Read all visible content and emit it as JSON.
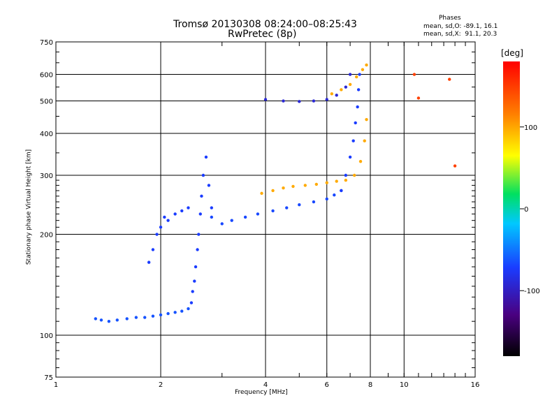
{
  "chart_data": {
    "type": "scatter",
    "title": "Tromsø 20130308 08:24:00–08:25:43",
    "subtitle": "RwPretec (8p)",
    "xlabel": "Frequency [MHz]",
    "ylabel": "Stationary phase Virtual Height [km]",
    "x_scale": "log",
    "y_scale": "log",
    "xlim": [
      1,
      16
    ],
    "ylim": [
      75,
      750
    ],
    "x_ticks": [
      1,
      2,
      4,
      6,
      8,
      10,
      16
    ],
    "y_ticks": [
      75,
      100,
      200,
      300,
      400,
      500,
      600,
      750
    ],
    "grid": true,
    "phase_box": {
      "title": "Phases",
      "line1": "mean, sd,O: -89.1, 16.1",
      "line2": "mean, sd,X:  91.1, 20.3"
    },
    "colorbar": {
      "label": "[deg]",
      "range": [
        -180,
        180
      ],
      "ticks": [
        100,
        0,
        -100
      ]
    },
    "traces": [
      {
        "name": "",
        "phase": -90,
        "x": [
          1.3,
          1.35,
          1.42,
          1.5,
          1.6,
          1.7,
          1.8,
          1.9,
          2.0,
          2.1,
          2.2,
          2.3,
          2.4
        ],
        "y": [
          112,
          111,
          110,
          111,
          112,
          113,
          113,
          114,
          115,
          116,
          117,
          118,
          120
        ]
      },
      {
        "name": "",
        "phase": -100,
        "x": [
          2.45,
          2.47,
          2.5,
          2.52,
          2.55,
          2.57,
          2.6,
          2.62,
          2.65,
          2.7,
          2.75,
          2.8
        ],
        "y": [
          125,
          135,
          145,
          160,
          180,
          200,
          230,
          260,
          300,
          340,
          280,
          240
        ]
      },
      {
        "name": "",
        "phase": -100,
        "x": [
          1.85,
          1.9,
          1.95,
          2.0,
          2.05,
          2.1,
          2.2,
          2.3,
          2.4
        ],
        "y": [
          165,
          180,
          200,
          210,
          225,
          220,
          230,
          235,
          240
        ]
      },
      {
        "name": "",
        "phase": -95,
        "x": [
          2.8,
          3.0,
          3.2,
          3.5,
          3.8,
          4.2,
          4.6,
          5.0,
          5.5,
          6.0,
          6.3,
          6.6
        ],
        "y": [
          225,
          215,
          220,
          225,
          230,
          235,
          240,
          245,
          250,
          255,
          262,
          270
        ]
      },
      {
        "name": "",
        "phase": 100,
        "x": [
          3.9,
          4.2,
          4.5,
          4.8,
          5.2,
          5.6,
          6.0,
          6.4,
          6.8,
          7.2,
          7.5,
          7.7,
          7.8
        ],
        "y": [
          265,
          270,
          275,
          278,
          280,
          282,
          285,
          288,
          290,
          300,
          330,
          380,
          440
        ]
      },
      {
        "name": "",
        "phase": -100,
        "x": [
          6.6,
          6.8,
          7.0,
          7.15,
          7.25,
          7.35,
          7.4,
          7.45
        ],
        "y": [
          270,
          300,
          340,
          380,
          430,
          480,
          540,
          600
        ]
      },
      {
        "name": "",
        "phase": -110,
        "x": [
          4.0,
          4.5,
          5.0,
          5.5,
          6.0,
          6.4,
          6.8,
          7.0
        ],
        "y": [
          505,
          500,
          498,
          500,
          505,
          520,
          550,
          600
        ]
      },
      {
        "name": "",
        "phase": 100,
        "x": [
          6.2,
          6.6,
          7.0,
          7.3,
          7.6,
          7.8
        ],
        "y": [
          525,
          540,
          560,
          590,
          620,
          640
        ]
      },
      {
        "name": "",
        "phase": 150,
        "x": [
          10.7,
          11.0,
          13.5,
          14.0
        ],
        "y": [
          600,
          510,
          580,
          320
        ]
      }
    ]
  }
}
